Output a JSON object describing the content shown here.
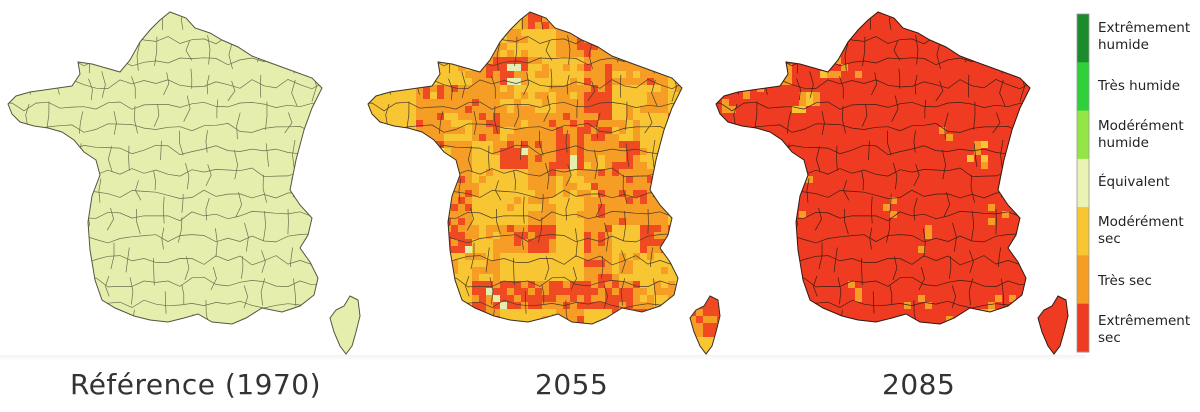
{
  "maps": [
    {
      "caption": "Référence (1970)",
      "palette": [
        "#e6eeae"
      ],
      "weights": [
        1
      ]
    },
    {
      "caption": "2055",
      "palette": [
        "#f8c632",
        "#f59d25",
        "#f04a23",
        "#e6eeae"
      ],
      "weights": [
        0.42,
        0.28,
        0.22,
        0.08
      ]
    },
    {
      "caption": "2085",
      "palette": [
        "#ee3b22",
        "#f59d25",
        "#f8c632",
        "#e6eeae"
      ],
      "weights": [
        0.82,
        0.1,
        0.05,
        0.03
      ]
    }
  ],
  "legend": {
    "items": [
      {
        "label_line1": "Extrêmement",
        "label_line2": "humide",
        "color": "#1a8c2c"
      },
      {
        "label_line1": "Très humide",
        "label_line2": "",
        "color": "#2fd13b"
      },
      {
        "label_line1": "Modérément",
        "label_line2": "humide",
        "color": "#93e645"
      },
      {
        "label_line1": "Équivalent",
        "label_line2": "",
        "color": "#eaf2b4"
      },
      {
        "label_line1": "Modérément",
        "label_line2": "sec",
        "color": "#f8c632"
      },
      {
        "label_line1": "Très sec",
        "label_line2": "",
        "color": "#f59d25"
      },
      {
        "label_line1": "Extrêmement",
        "label_line2": "sec",
        "color": "#ee3b22"
      }
    ]
  }
}
